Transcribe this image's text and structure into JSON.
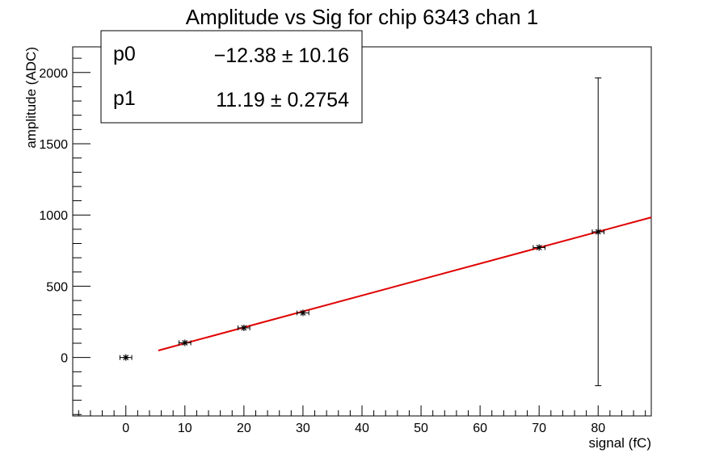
{
  "chart_data": {
    "type": "scatter",
    "title": "Amplitude vs Sig for chip 6343 chan 1",
    "xlabel": "signal (fC)",
    "ylabel": "amplitude (ADC)",
    "xlim": [
      -9,
      89
    ],
    "ylim": [
      -410,
      2180
    ],
    "x_ticks": [
      0,
      10,
      20,
      30,
      40,
      50,
      60,
      70,
      80
    ],
    "y_ticks": [
      0,
      500,
      1000,
      1500,
      2000
    ],
    "grid": false,
    "points": [
      {
        "x": 0,
        "y": 0,
        "xerr": 1,
        "yerr": 0
      },
      {
        "x": 10,
        "y": 103,
        "xerr": 1,
        "yerr": 0
      },
      {
        "x": 20,
        "y": 208,
        "xerr": 1,
        "yerr": 0
      },
      {
        "x": 30,
        "y": 313,
        "xerr": 1,
        "yerr": 0
      },
      {
        "x": 70,
        "y": 772,
        "xerr": 1,
        "yerr": 0
      },
      {
        "x": 80,
        "y": 882,
        "xerr": 1,
        "yerr": 1080
      }
    ],
    "fit": {
      "type": "line",
      "color": "#e00000",
      "x_range": [
        5.5,
        89
      ],
      "p0": -12.38,
      "p1": 11.19
    },
    "stats_box": {
      "placement": "top-left",
      "rows": [
        {
          "name": "p0",
          "value": "−12.38 ± 10.16"
        },
        {
          "name": "p1",
          "value": "11.19 ± 0.2754"
        }
      ]
    }
  }
}
